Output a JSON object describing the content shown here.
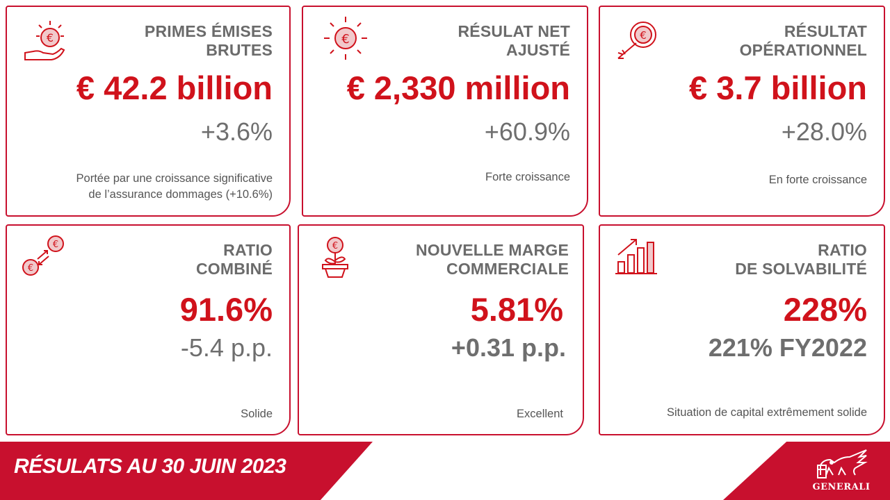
{
  "cards": [
    {
      "title": "PRIMES ÉMISES\nBRUTES",
      "value": "€ 42.2 billion",
      "delta": "+3.6%",
      "note": "Portée par une croissance significative\nde l’assurance dommages (+10.6%)",
      "icon": "hand-euro-coin-icon"
    },
    {
      "title": "RÉSULAT NET\nAJUSTÉ",
      "value": "€ 2,330 million",
      "delta": "+60.9%",
      "note": "Forte croissance",
      "icon": "shining-euro-coin-icon"
    },
    {
      "title": "RÉSULTAT\nOPÉRATIONNEL",
      "value": "€ 3.7 billion",
      "delta": "+28.0%",
      "note": "En forte croissance",
      "icon": "arrow-target-euro-icon"
    },
    {
      "title": "RATIO\nCOMBINÉ",
      "value": "91.6%",
      "delta": "-5.4 p.p.",
      "note": "Solide",
      "icon": "euro-exchange-icon"
    },
    {
      "title": "NOUVELLE MARGE\nCOMMERCIALE",
      "value": "5.81%",
      "delta": "+0.31 p.p.",
      "note": "Excellent",
      "icon": "euro-plant-icon"
    },
    {
      "title": "RATIO\nDE SOLVABILITÉ",
      "value": "228%",
      "delta": "221% FY2022",
      "note": "Situation de capital extrêmement solide",
      "icon": "growth-bar-chart-icon"
    }
  ],
  "banner": {
    "text": "RÉSULATS AU 30 JUIN 2023"
  },
  "logo": {
    "text": "GENERALI",
    "icon": "winged-lion-logo-icon"
  },
  "colors": {
    "accent": "#c8102e",
    "value": "#d0121b",
    "grey": "#6b6b6b"
  }
}
